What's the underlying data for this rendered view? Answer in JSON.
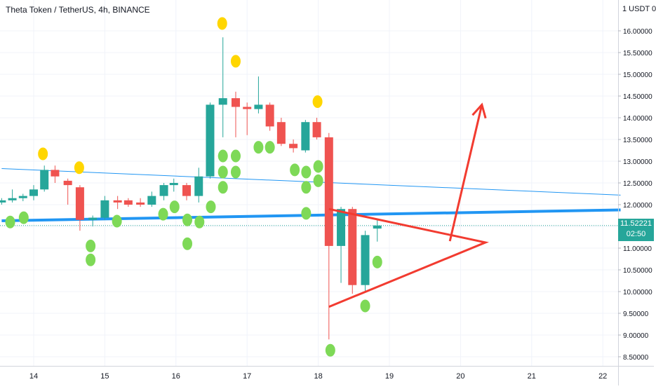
{
  "header": {
    "title": "Theta Token / TetherUS, 4h, BINANCE",
    "currency_label": "1 USDT 0"
  },
  "last_price": {
    "value": "11.52221",
    "countdown": "02:50",
    "color": "#26a69a"
  },
  "colors": {
    "up": "#26a69a",
    "down": "#ef5350",
    "signal_green": "#7ed957",
    "signal_yellow": "#ffd600",
    "trendline_blue": "#2196f3",
    "drawing_red": "#f23b30"
  },
  "chart_data": {
    "type": "candlestick",
    "symbol": "Theta Token / TetherUS",
    "interval": "4h",
    "exchange": "BINANCE",
    "x_ticks": [
      "14",
      "15",
      "16",
      "17",
      "18",
      "19",
      "20",
      "21",
      "22"
    ],
    "y_ticks": [
      "16.00000",
      "15.50000",
      "15.00000",
      "14.50000",
      "14.00000",
      "13.50000",
      "13.00000",
      "12.50000",
      "12.00000",
      "11.50000",
      "11.00000",
      "10.50000",
      "10.00000",
      "9.50000",
      "9.00000",
      "8.50000"
    ],
    "ylim": [
      8.3,
      16.5
    ],
    "xlim": [
      13.55,
      22.25
    ],
    "candles": [
      {
        "t": 13.55,
        "o": 12.05,
        "h": 12.15,
        "l": 12.0,
        "c": 12.1
      },
      {
        "t": 13.7,
        "o": 12.1,
        "h": 12.35,
        "l": 12.05,
        "c": 12.15
      },
      {
        "t": 13.85,
        "o": 12.15,
        "h": 12.25,
        "l": 12.08,
        "c": 12.2
      },
      {
        "t": 14.0,
        "o": 12.2,
        "h": 12.45,
        "l": 12.1,
        "c": 12.35
      },
      {
        "t": 14.15,
        "o": 12.35,
        "h": 12.9,
        "l": 12.3,
        "c": 12.8
      },
      {
        "t": 14.3,
        "o": 12.8,
        "h": 12.9,
        "l": 12.5,
        "c": 12.65
      },
      {
        "t": 14.48,
        "o": 12.55,
        "h": 12.6,
        "l": 12.0,
        "c": 12.45
      },
      {
        "t": 14.65,
        "o": 12.4,
        "h": 12.45,
        "l": 11.4,
        "c": 11.65
      },
      {
        "t": 14.83,
        "o": 11.65,
        "h": 11.75,
        "l": 11.5,
        "c": 11.7
      },
      {
        "t": 15.0,
        "o": 11.7,
        "h": 12.2,
        "l": 11.65,
        "c": 12.1
      },
      {
        "t": 15.18,
        "o": 12.1,
        "h": 12.2,
        "l": 11.9,
        "c": 12.05
      },
      {
        "t": 15.33,
        "o": 12.1,
        "h": 12.15,
        "l": 11.95,
        "c": 12.0
      },
      {
        "t": 15.5,
        "o": 12.05,
        "h": 12.15,
        "l": 11.95,
        "c": 12.0
      },
      {
        "t": 15.66,
        "o": 12.0,
        "h": 12.3,
        "l": 11.95,
        "c": 12.2
      },
      {
        "t": 15.83,
        "o": 12.2,
        "h": 12.5,
        "l": 12.1,
        "c": 12.45
      },
      {
        "t": 15.97,
        "o": 12.45,
        "h": 12.6,
        "l": 12.3,
        "c": 12.5
      },
      {
        "t": 16.15,
        "o": 12.45,
        "h": 12.5,
        "l": 12.1,
        "c": 12.2
      },
      {
        "t": 16.32,
        "o": 12.2,
        "h": 12.85,
        "l": 12.05,
        "c": 12.65
      },
      {
        "t": 16.48,
        "o": 12.65,
        "h": 14.35,
        "l": 12.6,
        "c": 14.3
      },
      {
        "t": 16.66,
        "o": 14.3,
        "h": 15.85,
        "l": 13.55,
        "c": 14.45
      },
      {
        "t": 16.84,
        "o": 14.45,
        "h": 14.6,
        "l": 13.55,
        "c": 14.25
      },
      {
        "t": 17.0,
        "o": 14.25,
        "h": 14.35,
        "l": 13.6,
        "c": 14.2
      },
      {
        "t": 17.16,
        "o": 14.2,
        "h": 14.95,
        "l": 14.1,
        "c": 14.3
      },
      {
        "t": 17.32,
        "o": 14.3,
        "h": 14.35,
        "l": 13.7,
        "c": 13.8
      },
      {
        "t": 17.48,
        "o": 13.9,
        "h": 14.0,
        "l": 13.35,
        "c": 13.4
      },
      {
        "t": 17.65,
        "o": 13.4,
        "h": 13.5,
        "l": 13.2,
        "c": 13.3
      },
      {
        "t": 17.82,
        "o": 13.25,
        "h": 13.95,
        "l": 13.2,
        "c": 13.9
      },
      {
        "t": 17.98,
        "o": 13.9,
        "h": 14.0,
        "l": 13.5,
        "c": 13.55
      },
      {
        "t": 18.15,
        "o": 13.55,
        "h": 13.65,
        "l": 8.9,
        "c": 11.05
      },
      {
        "t": 18.32,
        "o": 11.05,
        "h": 11.95,
        "l": 10.2,
        "c": 11.9
      },
      {
        "t": 18.48,
        "o": 11.9,
        "h": 11.95,
        "l": 9.95,
        "c": 10.15
      },
      {
        "t": 18.66,
        "o": 10.15,
        "h": 11.4,
        "l": 10.0,
        "c": 11.3
      },
      {
        "t": 18.83,
        "o": 11.45,
        "h": 11.65,
        "l": 11.15,
        "c": 11.52
      }
    ],
    "signals": {
      "yellow": [
        [
          14.13,
          13.17
        ],
        [
          14.64,
          12.85
        ],
        [
          16.65,
          16.17
        ],
        [
          16.84,
          15.3
        ],
        [
          17.99,
          14.37
        ]
      ],
      "green": [
        [
          13.67,
          11.6
        ],
        [
          13.86,
          11.7
        ],
        [
          14.8,
          11.05
        ],
        [
          14.8,
          10.73
        ],
        [
          15.17,
          11.62
        ],
        [
          15.82,
          11.78
        ],
        [
          15.98,
          11.95
        ],
        [
          16.16,
          11.65
        ],
        [
          16.16,
          11.1
        ],
        [
          16.33,
          11.6
        ],
        [
          16.49,
          11.95
        ],
        [
          16.66,
          12.4
        ],
        [
          16.66,
          12.75
        ],
        [
          16.66,
          13.12
        ],
        [
          16.84,
          12.75
        ],
        [
          16.84,
          13.12
        ],
        [
          17.16,
          13.32
        ],
        [
          17.32,
          13.32
        ],
        [
          17.67,
          12.8
        ],
        [
          17.83,
          12.75
        ],
        [
          17.83,
          12.4
        ],
        [
          17.83,
          11.8
        ],
        [
          18.0,
          12.55
        ],
        [
          18.0,
          12.88
        ],
        [
          18.17,
          8.65
        ],
        [
          18.66,
          9.67
        ],
        [
          18.83,
          10.68
        ]
      ]
    },
    "lines": [
      {
        "name": "trendline_thin",
        "color": "#2196f3",
        "from": [
          13.55,
          12.83
        ],
        "to": [
          22.25,
          12.22
        ]
      },
      {
        "name": "trendline_thick",
        "color": "#2196f3",
        "from": [
          13.55,
          11.63
        ],
        "to": [
          22.25,
          11.88
        ]
      }
    ],
    "drawings": [
      {
        "name": "triangle",
        "color": "#f23b30",
        "points": [
          [
            18.15,
            11.9
          ],
          [
            20.35,
            11.13
          ],
          [
            18.15,
            9.65
          ]
        ]
      },
      {
        "name": "arrow",
        "color": "#f23b30",
        "from": [
          19.85,
          11.16
        ],
        "to": [
          20.3,
          14.3
        ]
      }
    ],
    "last_price_line": 11.52
  }
}
